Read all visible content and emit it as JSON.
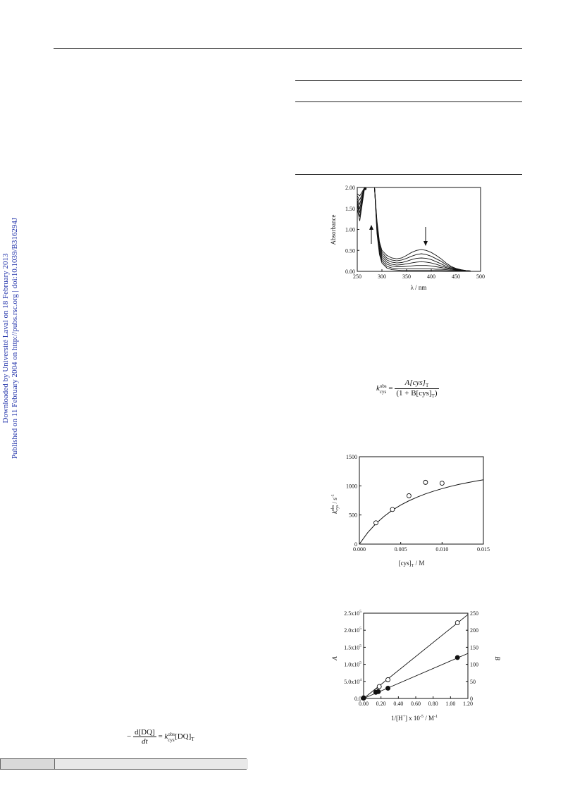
{
  "sidebar": {
    "line1": "Downloaded by Université Laval on 18 February 2013",
    "line2": "Published on 11 February 2004 on http://pubs.rsc.org | doi:10.1039/B316294J"
  },
  "equations": {
    "eq1": {
      "k_base": "k",
      "k_sup": "obs",
      "k_sub": "cys",
      "equals": "=",
      "numerator": "A[cys]",
      "numerator_sub": "T",
      "denominator": "(1 + B[cys]",
      "denominator_sub": "T",
      "denominator_end": ")"
    },
    "eq2": {
      "minus": "−",
      "numerator": "d[DQ]",
      "denominator": "dt",
      "equals": "=",
      "k_base": "k",
      "k_sup": "obs",
      "k_sub": "cys",
      "term": "[DQ]",
      "term_sub": "T"
    }
  },
  "chart_data": [
    {
      "type": "line",
      "title": "",
      "xlabel": "λ / nm",
      "ylabel": "Absorbance",
      "xlim": [
        250,
        500
      ],
      "ylim": [
        0,
        2.0
      ],
      "x_ticks": [
        "250",
        "300",
        "350",
        "400",
        "450",
        "500"
      ],
      "y_ticks": [
        "0.00",
        "0.50",
        "1.00",
        "1.50",
        "2.00"
      ],
      "annotations": [
        "up-arrow",
        "down-arrow"
      ],
      "series": [
        {
          "x": [
            250,
            255,
            260,
            265,
            270,
            275,
            280,
            285,
            290,
            295,
            300,
            310,
            320,
            330,
            340,
            350,
            360,
            370,
            380,
            390,
            400,
            410,
            420,
            430,
            440,
            450,
            460,
            470,
            480
          ],
          "y": [
            1.85,
            1.8,
            1.9,
            2.0,
            2.0,
            2.0,
            2.0,
            2.0,
            1.2,
            0.7,
            0.5,
            0.38,
            0.32,
            0.3,
            0.32,
            0.38,
            0.45,
            0.5,
            0.52,
            0.5,
            0.45,
            0.38,
            0.3,
            0.2,
            0.12,
            0.07,
            0.04,
            0.02,
            0.01
          ]
        },
        {
          "x": [
            250,
            255,
            260,
            265,
            270,
            275,
            280,
            285,
            290,
            295,
            300,
            310,
            320,
            330,
            340,
            350,
            360,
            370,
            380,
            390,
            400,
            410,
            420,
            430,
            440,
            450,
            460,
            470,
            480
          ],
          "y": [
            1.8,
            1.7,
            1.85,
            2.0,
            2.0,
            2.0,
            2.0,
            2.0,
            1.15,
            0.65,
            0.45,
            0.32,
            0.27,
            0.25,
            0.27,
            0.31,
            0.36,
            0.4,
            0.42,
            0.4,
            0.36,
            0.3,
            0.24,
            0.16,
            0.1,
            0.06,
            0.035,
            0.02,
            0.01
          ]
        },
        {
          "x": [
            250,
            255,
            260,
            265,
            270,
            275,
            280,
            285,
            290,
            295,
            300,
            310,
            320,
            330,
            340,
            350,
            360,
            370,
            380,
            390,
            400,
            410,
            420,
            430,
            440,
            450,
            460,
            470,
            480
          ],
          "y": [
            1.75,
            1.6,
            1.8,
            2.0,
            2.0,
            2.0,
            2.0,
            2.0,
            1.1,
            0.6,
            0.4,
            0.27,
            0.22,
            0.2,
            0.21,
            0.24,
            0.28,
            0.31,
            0.32,
            0.31,
            0.28,
            0.23,
            0.18,
            0.12,
            0.08,
            0.05,
            0.03,
            0.015,
            0.01
          ]
        },
        {
          "x": [
            250,
            255,
            260,
            265,
            270,
            275,
            280,
            285,
            290,
            295,
            300,
            310,
            320,
            330,
            340,
            350,
            360,
            370,
            380,
            390,
            400,
            410,
            420,
            430,
            440,
            450,
            460,
            470,
            480
          ],
          "y": [
            1.7,
            1.5,
            1.75,
            2.0,
            2.0,
            2.0,
            2.0,
            2.0,
            1.05,
            0.55,
            0.35,
            0.22,
            0.17,
            0.15,
            0.16,
            0.18,
            0.2,
            0.22,
            0.23,
            0.22,
            0.2,
            0.17,
            0.13,
            0.09,
            0.06,
            0.04,
            0.025,
            0.015,
            0.01
          ]
        },
        {
          "x": [
            250,
            255,
            260,
            265,
            270,
            275,
            280,
            285,
            290,
            295,
            300,
            310,
            320,
            330,
            340,
            350,
            360,
            370,
            380,
            390,
            400,
            410,
            420,
            430,
            440,
            450,
            460,
            470,
            480
          ],
          "y": [
            1.65,
            1.4,
            1.7,
            2.0,
            2.0,
            2.0,
            2.0,
            2.0,
            1.0,
            0.5,
            0.3,
            0.17,
            0.13,
            0.11,
            0.11,
            0.12,
            0.13,
            0.14,
            0.14,
            0.14,
            0.13,
            0.11,
            0.09,
            0.07,
            0.05,
            0.035,
            0.02,
            0.012,
            0.008
          ]
        },
        {
          "x": [
            250,
            255,
            260,
            265,
            270,
            275,
            280,
            285,
            290,
            295,
            300,
            310,
            320,
            330,
            340,
            350,
            360,
            370,
            380,
            390,
            400,
            410,
            420,
            430,
            440,
            450,
            460,
            470,
            480
          ],
          "y": [
            1.6,
            1.3,
            1.65,
            2.0,
            2.0,
            2.0,
            2.0,
            2.0,
            0.95,
            0.45,
            0.25,
            0.12,
            0.08,
            0.07,
            0.06,
            0.06,
            0.06,
            0.06,
            0.06,
            0.06,
            0.06,
            0.05,
            0.05,
            0.04,
            0.03,
            0.025,
            0.015,
            0.01,
            0.006
          ]
        },
        {
          "x": [
            250,
            255,
            260,
            265,
            270,
            275,
            280,
            285,
            290,
            295,
            300,
            310,
            320,
            330,
            340,
            350,
            360,
            370,
            380,
            390,
            400,
            410,
            420,
            430,
            440,
            450,
            460,
            470,
            480
          ],
          "y": [
            1.5,
            1.2,
            1.6,
            2.0,
            2.0,
            2.0,
            2.0,
            2.0,
            0.9,
            0.4,
            0.2,
            0.08,
            0.04,
            0.03,
            0.02,
            0.02,
            0.02,
            0.02,
            0.02,
            0.02,
            0.02,
            0.02,
            0.02,
            0.015,
            0.012,
            0.01,
            0.008,
            0.006,
            0.004
          ]
        }
      ]
    },
    {
      "type": "scatter",
      "title": "",
      "xlabel": "[cys]",
      "xlabel_sub": "T",
      "xlabel_unit": " / M",
      "ylabel": "k",
      "ylabel_sup": "obs",
      "ylabel_sub": "cys",
      "ylabel_unit": " / s",
      "ylabel_unit_sup": "-1",
      "xlim": [
        0,
        0.015
      ],
      "ylim": [
        0,
        1500
      ],
      "x_ticks": [
        "0.000",
        "0.005",
        "0.010",
        "0.015"
      ],
      "y_ticks": [
        "0",
        "500",
        "1000",
        "1500"
      ],
      "points": {
        "x": [
          0.002,
          0.004,
          0.006,
          0.008,
          0.01
        ],
        "y": [
          365,
          595,
          830,
          1060,
          1045
        ]
      },
      "fit_curve": {
        "x": [
          0,
          0.001,
          0.002,
          0.003,
          0.004,
          0.005,
          0.006,
          0.007,
          0.008,
          0.009,
          0.01,
          0.011,
          0.012,
          0.013,
          0.014,
          0.015
        ],
        "y": [
          0,
          196,
          352,
          478,
          583,
          670,
          744,
          807,
          862,
          910,
          952,
          990,
          1023,
          1053,
          1080,
          1104
        ]
      }
    },
    {
      "type": "scatter",
      "title": "",
      "xlabel": "1/[H",
      "xlabel_sup": "+",
      "xlabel_mid": "] x 10",
      "xlabel_sup2": "-5",
      "xlabel_unit": " / M",
      "xlabel_unit_sup": "-1",
      "ylabel_left": "A",
      "ylabel_right": "B",
      "xlim": [
        0,
        1.2
      ],
      "ylim_left": [
        0,
        250000
      ],
      "ylim_right": [
        0,
        250
      ],
      "x_ticks": [
        "0.00",
        "0.20",
        "0.40",
        "0.60",
        "0.80",
        "1.00",
        "1.20"
      ],
      "y_ticks_left": [
        {
          "base": "0.0",
          "exp": ""
        },
        {
          "base": "5.0x10",
          "exp": "4"
        },
        {
          "base": "1.0x10",
          "exp": "5"
        },
        {
          "base": "1.5x10",
          "exp": "5"
        },
        {
          "base": "2.0x10",
          "exp": "5"
        },
        {
          "base": "2.5x10",
          "exp": "5"
        }
      ],
      "y_ticks_right": [
        "0",
        "50",
        "100",
        "150",
        "200",
        "250"
      ],
      "series": [
        {
          "marker": "open-circle",
          "axis": "left",
          "x": [
            0.0,
            0.15,
            0.18,
            0.28,
            1.08
          ],
          "y": [
            2000,
            22000,
            35000,
            55000,
            222000
          ],
          "fit": {
            "x": [
              0.0,
              1.2
            ],
            "y": [
              0,
              246000
            ]
          }
        },
        {
          "marker": "filled-circle",
          "axis": "right",
          "x": [
            0.0,
            0.14,
            0.17,
            0.28,
            1.08
          ],
          "y": [
            1,
            18,
            20,
            30,
            120
          ],
          "fit": {
            "x": [
              0.0,
              1.2
            ],
            "y": [
              0,
              132
            ]
          }
        }
      ]
    }
  ]
}
